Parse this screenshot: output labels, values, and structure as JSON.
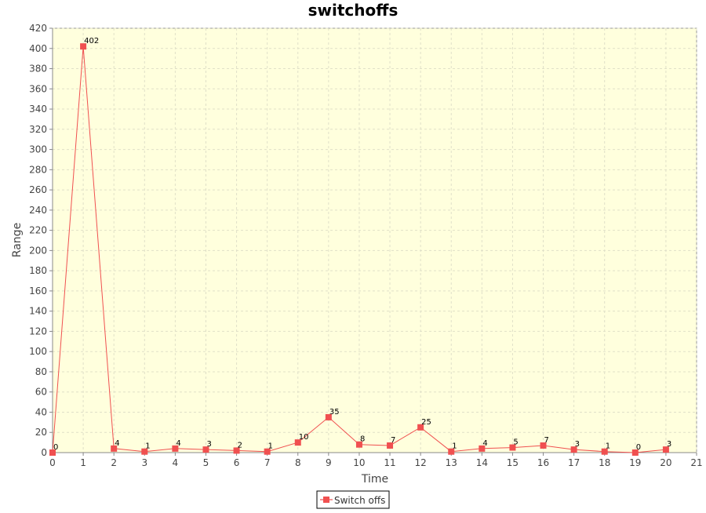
{
  "chart_data": {
    "type": "line",
    "title": "switchoffs",
    "xlabel": "Time",
    "ylabel": "Range",
    "xlim": [
      0,
      21
    ],
    "ylim": [
      0,
      420
    ],
    "x_ticks": [
      0,
      1,
      2,
      3,
      4,
      5,
      6,
      7,
      8,
      9,
      10,
      11,
      12,
      13,
      14,
      15,
      16,
      17,
      18,
      19,
      20,
      21
    ],
    "y_ticks": [
      0,
      20,
      40,
      60,
      80,
      100,
      120,
      140,
      160,
      180,
      200,
      220,
      240,
      260,
      280,
      300,
      320,
      340,
      360,
      380,
      400,
      420
    ],
    "grid": true,
    "legend": "bottom-center",
    "series": [
      {
        "name": "Switch offs",
        "color": "#f05050",
        "x": [
          0,
          1,
          2,
          3,
          4,
          5,
          6,
          7,
          8,
          9,
          10,
          11,
          12,
          13,
          14,
          15,
          16,
          17,
          18,
          19,
          20
        ],
        "values": [
          0,
          402,
          4,
          1,
          4,
          3,
          2,
          1,
          10,
          35,
          8,
          7,
          25,
          1,
          4,
          5,
          7,
          3,
          1,
          0,
          3
        ]
      }
    ]
  },
  "colors": {
    "plot_background": "#ffffdd",
    "grid": "#e0e0c8",
    "series": "#f05050"
  }
}
